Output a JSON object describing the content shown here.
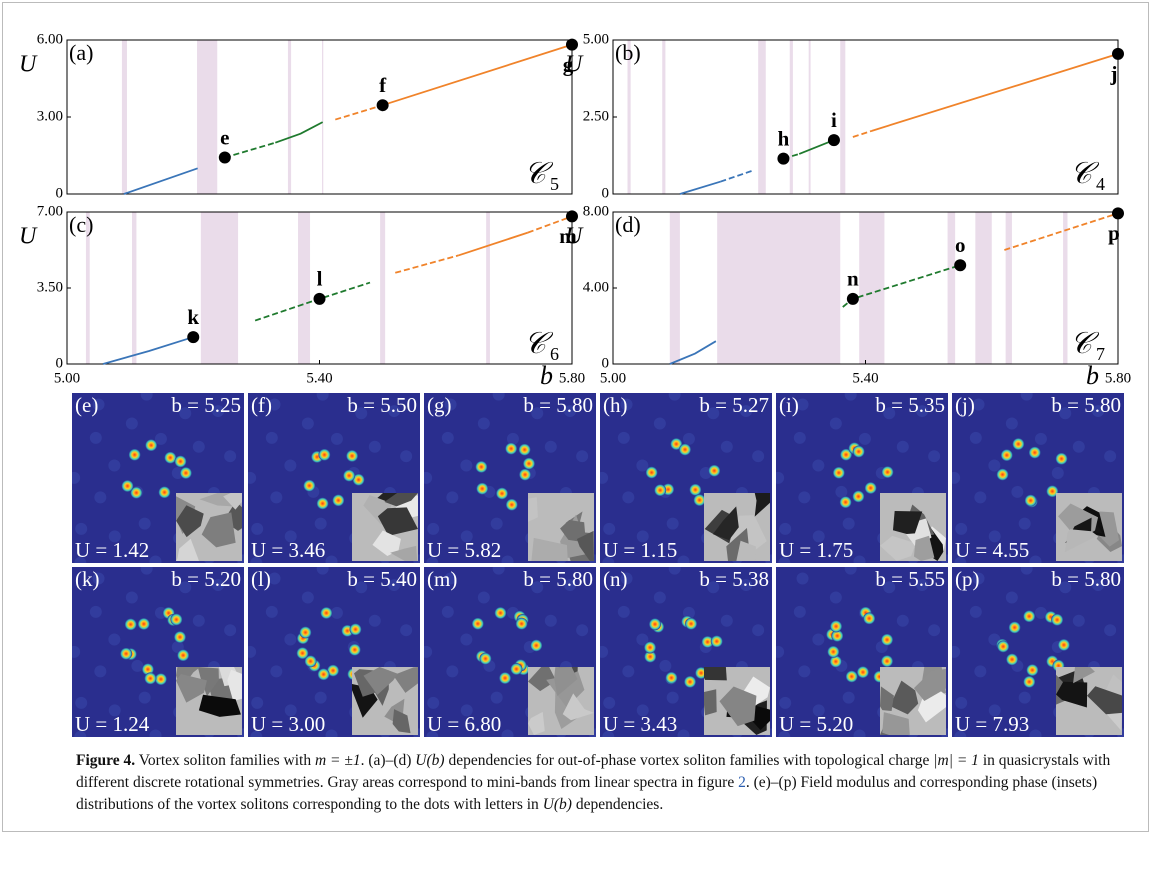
{
  "chart_data": [
    {
      "type": "line",
      "panel_label": "(a)",
      "y_label": "U",
      "curve_symbol": "𝒞",
      "curve_index": "5",
      "xlim": [
        5,
        5.8
      ],
      "ylim": [
        0,
        6
      ],
      "yticks": [
        0,
        {
          "value": 3,
          "label": "3.00"
        },
        {
          "value": 6,
          "label": "6.00"
        }
      ],
      "bands": [
        [
          5.087,
          5.095
        ],
        [
          5.206,
          5.238
        ],
        [
          5.35,
          5.355
        ],
        [
          5.404,
          5.406
        ]
      ],
      "series": [
        {
          "color": "#3a75b8",
          "dashed": false,
          "x": [
            5.09,
            5.207
          ],
          "values": [
            0,
            1.0
          ]
        },
        {
          "color": "#1f7a2e",
          "dashed": true,
          "x": [
            5.25,
            5.33
          ],
          "values": [
            1.42,
            2.0
          ]
        },
        {
          "color": "#1f7a2e",
          "dashed": false,
          "x": [
            5.33,
            5.37,
            5.405
          ],
          "values": [
            2.0,
            2.35,
            2.8
          ]
        },
        {
          "color": "#f0832a",
          "dashed": true,
          "x": [
            5.425,
            5.5
          ],
          "values": [
            2.9,
            3.46
          ]
        },
        {
          "color": "#f0832a",
          "dashed": false,
          "x": [
            5.5,
            5.8
          ],
          "values": [
            3.46,
            5.82
          ]
        }
      ],
      "points": [
        {
          "label": "e",
          "x": 5.25,
          "y": 1.42
        },
        {
          "label": "f",
          "x": 5.5,
          "y": 3.46
        },
        {
          "label": "g",
          "x": 5.8,
          "y": 5.82
        }
      ]
    },
    {
      "type": "line",
      "panel_label": "(b)",
      "y_label": "U",
      "curve_symbol": "𝒞",
      "curve_index": "4",
      "xlim": [
        5,
        5.8
      ],
      "ylim": [
        0,
        5
      ],
      "yticks": [
        0,
        {
          "value": 2.5,
          "label": "2.50"
        },
        {
          "value": 5,
          "label": "5.00"
        }
      ],
      "bands": [
        [
          5.023,
          5.028
        ],
        [
          5.078,
          5.083
        ],
        [
          5.23,
          5.242
        ],
        [
          5.28,
          5.285
        ],
        [
          5.31,
          5.313
        ],
        [
          5.36,
          5.368
        ]
      ],
      "series": [
        {
          "color": "#3a75b8",
          "dashed": false,
          "x": [
            5.106,
            5.17
          ],
          "values": [
            0,
            0.4
          ]
        },
        {
          "color": "#3a75b8",
          "dashed": true,
          "x": [
            5.17,
            5.22
          ],
          "values": [
            0.4,
            0.75
          ]
        },
        {
          "color": "#1f7a2e",
          "dashed": true,
          "x": [
            5.27,
            5.295
          ],
          "values": [
            1.15,
            1.3
          ]
        },
        {
          "color": "#1f7a2e",
          "dashed": false,
          "x": [
            5.295,
            5.35
          ],
          "values": [
            1.3,
            1.75
          ]
        },
        {
          "color": "#f0832a",
          "dashed": true,
          "x": [
            5.38,
            5.41
          ],
          "values": [
            1.85,
            2.05
          ]
        },
        {
          "color": "#f0832a",
          "dashed": false,
          "x": [
            5.41,
            5.8
          ],
          "values": [
            2.05,
            4.55
          ]
        }
      ],
      "points": [
        {
          "label": "h",
          "x": 5.27,
          "y": 1.15
        },
        {
          "label": "i",
          "x": 5.35,
          "y": 1.75
        },
        {
          "label": "j",
          "x": 5.8,
          "y": 4.55
        }
      ]
    },
    {
      "type": "line",
      "panel_label": "(c)",
      "y_label": "U",
      "x_label": "b",
      "curve_symbol": "𝒞",
      "curve_index": "6",
      "xlim": [
        5,
        5.8
      ],
      "ylim": [
        0,
        7
      ],
      "yticks": [
        0,
        {
          "value": 3.5,
          "label": "3.50"
        },
        {
          "value": 7,
          "label": "7.00"
        }
      ],
      "xticks": [
        {
          "value": 5,
          "label": "5.00"
        },
        {
          "value": 5.4,
          "label": "5.40"
        },
        {
          "value": 5.8,
          "label": "5.80"
        }
      ],
      "bands": [
        [
          5.03,
          5.036
        ],
        [
          5.103,
          5.11
        ],
        [
          5.212,
          5.271
        ],
        [
          5.366,
          5.385
        ],
        [
          5.496,
          5.504
        ],
        [
          5.664,
          5.67
        ]
      ],
      "series": [
        {
          "color": "#3a75b8",
          "dashed": false,
          "x": [
            5.057,
            5.13,
            5.2
          ],
          "values": [
            0,
            0.6,
            1.24
          ]
        },
        {
          "color": "#1f7a2e",
          "dashed": true,
          "x": [
            5.298,
            5.4,
            5.48
          ],
          "values": [
            2.0,
            3.0,
            3.75
          ]
        },
        {
          "color": "#f0832a",
          "dashed": true,
          "x": [
            5.52,
            5.62
          ],
          "values": [
            4.2,
            5.0
          ]
        },
        {
          "color": "#f0832a",
          "dashed": false,
          "x": [
            5.62,
            5.73
          ],
          "values": [
            5.0,
            6.05
          ]
        },
        {
          "color": "#f0832a",
          "dashed": true,
          "x": [
            5.73,
            5.8
          ],
          "values": [
            6.05,
            6.8
          ]
        }
      ],
      "points": [
        {
          "label": "k",
          "x": 5.2,
          "y": 1.24
        },
        {
          "label": "l",
          "x": 5.4,
          "y": 3.0
        },
        {
          "label": "m",
          "x": 5.8,
          "y": 6.8
        }
      ]
    },
    {
      "type": "line",
      "panel_label": "(d)",
      "y_label": "U",
      "x_label": "b",
      "curve_symbol": "𝒞",
      "curve_index": "7",
      "xlim": [
        5,
        5.8
      ],
      "ylim": [
        0,
        8
      ],
      "yticks": [
        0,
        {
          "value": 4,
          "label": "4.00"
        },
        {
          "value": 8,
          "label": "8.00"
        }
      ],
      "xticks": [
        {
          "value": 5,
          "label": "5.00"
        },
        {
          "value": 5.4,
          "label": "5.40"
        },
        {
          "value": 5.8,
          "label": "5.80"
        }
      ],
      "bands": [
        [
          5.09,
          5.106
        ],
        [
          5.165,
          5.36
        ],
        [
          5.39,
          5.43
        ],
        [
          5.53,
          5.542
        ],
        [
          5.574,
          5.6
        ],
        [
          5.622,
          5.632
        ],
        [
          5.713,
          5.72
        ]
      ],
      "series": [
        {
          "color": "#3a75b8",
          "dashed": false,
          "x": [
            5.09,
            5.13,
            5.163
          ],
          "values": [
            0,
            0.55,
            1.2
          ]
        },
        {
          "color": "#1f7a2e",
          "dashed": true,
          "x": [
            5.364,
            5.38,
            5.55
          ],
          "values": [
            3.0,
            3.43,
            5.2
          ]
        },
        {
          "color": "#f0832a",
          "dashed": true,
          "x": [
            5.62,
            5.8
          ],
          "values": [
            6.0,
            7.93
          ]
        }
      ],
      "points": [
        {
          "label": "n",
          "x": 5.38,
          "y": 3.43
        },
        {
          "label": "o",
          "x": 5.55,
          "y": 5.2
        },
        {
          "label": "p",
          "x": 5.8,
          "y": 7.93
        }
      ]
    }
  ],
  "panels": [
    {
      "label": "(e)",
      "b_text": "b = 5.25",
      "u_text": "U = 1.42"
    },
    {
      "label": "(f)",
      "b_text": "b = 5.50",
      "u_text": "U = 3.46"
    },
    {
      "label": "(g)",
      "b_text": "b = 5.80",
      "u_text": "U = 5.82"
    },
    {
      "label": "(h)",
      "b_text": "b = 5.27",
      "u_text": "U = 1.15"
    },
    {
      "label": "(i)",
      "b_text": "b = 5.35",
      "u_text": "U = 1.75"
    },
    {
      "label": "(j)",
      "b_text": "b = 5.80",
      "u_text": "U = 4.55"
    },
    {
      "label": "(k)",
      "b_text": "b = 5.20",
      "u_text": "U = 1.24"
    },
    {
      "label": "(l)",
      "b_text": "b = 5.40",
      "u_text": "U = 3.00"
    },
    {
      "label": "(m)",
      "b_text": "b = 5.80",
      "u_text": "U = 6.80"
    },
    {
      "label": "(n)",
      "b_text": "b = 5.38",
      "u_text": "U = 3.43"
    },
    {
      "label": null,
      "b_text": "b = 5.55",
      "u_text": "U = 5.20"
    },
    {
      "label": "(p)",
      "b_text": "b = 5.80",
      "u_text": "U = 7.93"
    }
  ],
  "caption": {
    "label": "Figure 4.",
    "parts": [
      {
        "text": " Vortex soliton families with ",
        "style": "plain"
      },
      {
        "text": "m = ±1",
        "style": "italic"
      },
      {
        "text": ". (a)–(d) ",
        "style": "plain"
      },
      {
        "text": "U(b)",
        "style": "italic"
      },
      {
        "text": " dependencies for out-of-phase vortex soliton families with topological charge ",
        "style": "plain"
      },
      {
        "text": "|m| = 1",
        "style": "italic"
      },
      {
        "text": " in quasicrystals with different discrete rotational symmetries. Gray areas correspond to mini-bands from linear spectra in figure ",
        "style": "plain"
      },
      {
        "text": "2",
        "style": "link"
      },
      {
        "text": ". (e)–(p) Field modulus and corresponding phase (insets) distributions of the vortex solitons corresponding to the dots with letters in ",
        "style": "plain"
      },
      {
        "text": "U(b)",
        "style": "italic"
      },
      {
        "text": " dependencies.",
        "style": "plain"
      }
    ]
  }
}
